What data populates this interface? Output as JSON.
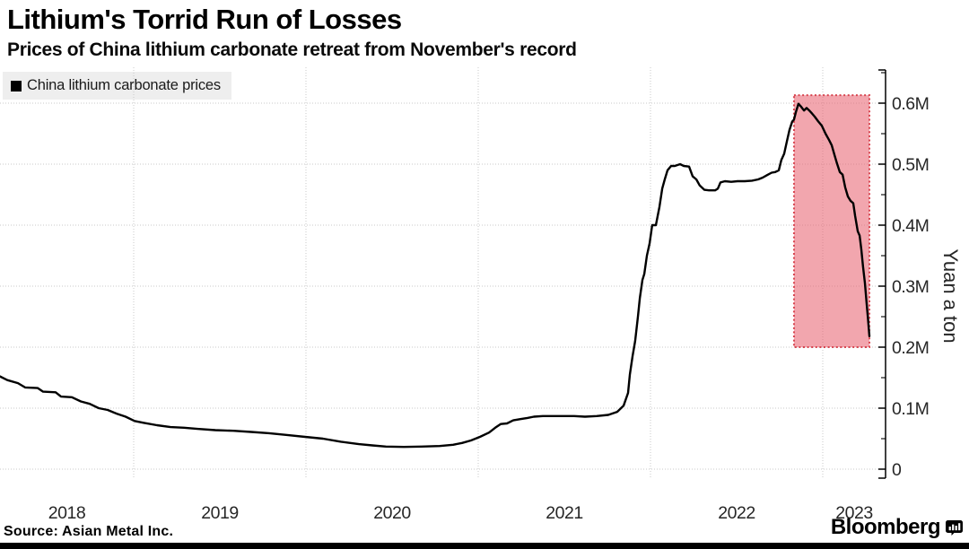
{
  "header": {
    "title": "Lithium's Torrid Run of Losses",
    "subtitle": "Prices of China lithium carbonate retreat from November's record"
  },
  "legend": {
    "marker": "black-square",
    "label": "China lithium carbonate prices"
  },
  "footer": {
    "source": "Source: Asian Metal Inc.",
    "brand": "Bloomberg"
  },
  "colors": {
    "line": "#000000",
    "highlight_fill": "#f2a6ae",
    "highlight_border": "#d7444f",
    "grid": "#c9c9c9",
    "legend_bg": "#eeeeee",
    "axis": "#000000",
    "text": "#262626"
  },
  "chart_data": {
    "type": "line",
    "title": "Lithium's Torrid Run of Losses",
    "subtitle": "Prices of China lithium carbonate retreat from November's record",
    "series_name": "China lithium carbonate prices",
    "ylabel": "Yuan a ton",
    "unit": "million yuan per ton",
    "grid": true,
    "legend_position": "top-left",
    "ylim": [
      0,
      0.66
    ],
    "x_range_years": [
      2018.22,
      2023.36
    ],
    "x_axis": {
      "tick_years": [
        2018,
        2019,
        2020,
        2021,
        2022,
        2023
      ],
      "tick_labels": [
        "2018",
        "2019",
        "2020",
        "2021",
        "2022",
        "2023"
      ]
    },
    "y_axis": {
      "major_ticks": [
        {
          "value": 0.0,
          "label": "0"
        },
        {
          "value": 0.1,
          "label": "0.1M"
        },
        {
          "value": 0.2,
          "label": "0.2M"
        },
        {
          "value": 0.3,
          "label": "0.3M"
        },
        {
          "value": 0.4,
          "label": "0.4M"
        },
        {
          "value": 0.5,
          "label": "0.5M"
        },
        {
          "value": 0.6,
          "label": "0.6M"
        }
      ],
      "minor_ticks": [
        0.05,
        0.15,
        0.25,
        0.35,
        0.45,
        0.55,
        0.65
      ]
    },
    "highlight_region": {
      "t0": 2022.833,
      "t1": 2023.271,
      "v0": 0.2,
      "v1": 0.613
    },
    "points": [
      [
        2018.224,
        0.152
      ],
      [
        2018.266,
        0.146
      ],
      [
        2018.328,
        0.141
      ],
      [
        2018.37,
        0.134
      ],
      [
        2018.443,
        0.133
      ],
      [
        2018.474,
        0.127
      ],
      [
        2018.547,
        0.126
      ],
      [
        2018.578,
        0.119
      ],
      [
        2018.641,
        0.118
      ],
      [
        2018.693,
        0.111
      ],
      [
        2018.745,
        0.107
      ],
      [
        2018.797,
        0.1
      ],
      [
        2018.849,
        0.097
      ],
      [
        2018.901,
        0.091
      ],
      [
        2018.953,
        0.086
      ],
      [
        2019.005,
        0.079
      ],
      [
        2019.057,
        0.076
      ],
      [
        2019.135,
        0.072
      ],
      [
        2019.214,
        0.069
      ],
      [
        2019.292,
        0.068
      ],
      [
        2019.37,
        0.066
      ],
      [
        2019.474,
        0.064
      ],
      [
        2019.578,
        0.063
      ],
      [
        2019.682,
        0.061
      ],
      [
        2019.786,
        0.059
      ],
      [
        2019.891,
        0.056
      ],
      [
        2019.995,
        0.053
      ],
      [
        2020.099,
        0.05
      ],
      [
        2020.203,
        0.045
      ],
      [
        2020.307,
        0.041
      ],
      [
        2020.385,
        0.039
      ],
      [
        2020.464,
        0.037
      ],
      [
        2020.568,
        0.0365
      ],
      [
        2020.672,
        0.037
      ],
      [
        2020.776,
        0.038
      ],
      [
        2020.854,
        0.04
      ],
      [
        2020.906,
        0.043
      ],
      [
        2020.958,
        0.047
      ],
      [
        2021.01,
        0.053
      ],
      [
        2021.063,
        0.06
      ],
      [
        2021.099,
        0.068
      ],
      [
        2021.13,
        0.074
      ],
      [
        2021.167,
        0.075
      ],
      [
        2021.203,
        0.08
      ],
      [
        2021.245,
        0.082
      ],
      [
        2021.286,
        0.084
      ],
      [
        2021.323,
        0.086
      ],
      [
        2021.375,
        0.087
      ],
      [
        2021.453,
        0.087
      ],
      [
        2021.557,
        0.087
      ],
      [
        2021.62,
        0.086
      ],
      [
        2021.688,
        0.087
      ],
      [
        2021.755,
        0.089
      ],
      [
        2021.807,
        0.094
      ],
      [
        2021.844,
        0.104
      ],
      [
        2021.87,
        0.125
      ],
      [
        2021.88,
        0.155
      ],
      [
        2021.896,
        0.185
      ],
      [
        2021.911,
        0.21
      ],
      [
        2021.927,
        0.25
      ],
      [
        2021.938,
        0.28
      ],
      [
        2021.953,
        0.31
      ],
      [
        2021.964,
        0.32
      ],
      [
        2021.979,
        0.35
      ],
      [
        2021.995,
        0.37
      ],
      [
        2022.01,
        0.4
      ],
      [
        2022.031,
        0.4
      ],
      [
        2022.052,
        0.43
      ],
      [
        2022.068,
        0.46
      ],
      [
        2022.083,
        0.475
      ],
      [
        2022.099,
        0.49
      ],
      [
        2022.12,
        0.497
      ],
      [
        2022.141,
        0.497
      ],
      [
        2022.172,
        0.5
      ],
      [
        2022.193,
        0.497
      ],
      [
        2022.224,
        0.496
      ],
      [
        2022.245,
        0.48
      ],
      [
        2022.266,
        0.475
      ],
      [
        2022.286,
        0.465
      ],
      [
        2022.313,
        0.458
      ],
      [
        2022.339,
        0.457
      ],
      [
        2022.375,
        0.457
      ],
      [
        2022.391,
        0.46
      ],
      [
        2022.406,
        0.47
      ],
      [
        2022.432,
        0.472
      ],
      [
        2022.469,
        0.471
      ],
      [
        2022.505,
        0.472
      ],
      [
        2022.547,
        0.472
      ],
      [
        2022.589,
        0.473
      ],
      [
        2022.625,
        0.475
      ],
      [
        2022.651,
        0.478
      ],
      [
        2022.677,
        0.482
      ],
      [
        2022.703,
        0.486
      ],
      [
        2022.724,
        0.487
      ],
      [
        2022.745,
        0.49
      ],
      [
        2022.76,
        0.507
      ],
      [
        2022.776,
        0.517
      ],
      [
        2022.792,
        0.538
      ],
      [
        2022.807,
        0.556
      ],
      [
        2022.823,
        0.57
      ],
      [
        2022.833,
        0.573
      ],
      [
        2022.844,
        0.585
      ],
      [
        2022.859,
        0.599
      ],
      [
        2022.875,
        0.594
      ],
      [
        2022.891,
        0.588
      ],
      [
        2022.906,
        0.592
      ],
      [
        2022.922,
        0.588
      ],
      [
        2022.938,
        0.583
      ],
      [
        2022.953,
        0.578
      ],
      [
        2022.974,
        0.57
      ],
      [
        2022.995,
        0.563
      ],
      [
        2023.016,
        0.55
      ],
      [
        2023.036,
        0.54
      ],
      [
        2023.052,
        0.531
      ],
      [
        2023.068,
        0.515
      ],
      [
        2023.083,
        0.501
      ],
      [
        2023.099,
        0.487
      ],
      [
        2023.115,
        0.483
      ],
      [
        2023.13,
        0.462
      ],
      [
        2023.146,
        0.447
      ],
      [
        2023.161,
        0.44
      ],
      [
        2023.177,
        0.436
      ],
      [
        2023.188,
        0.415
      ],
      [
        2023.203,
        0.39
      ],
      [
        2023.214,
        0.383
      ],
      [
        2023.224,
        0.36
      ],
      [
        2023.234,
        0.332
      ],
      [
        2023.245,
        0.305
      ],
      [
        2023.255,
        0.27
      ],
      [
        2023.263,
        0.245
      ],
      [
        2023.271,
        0.218
      ]
    ]
  }
}
